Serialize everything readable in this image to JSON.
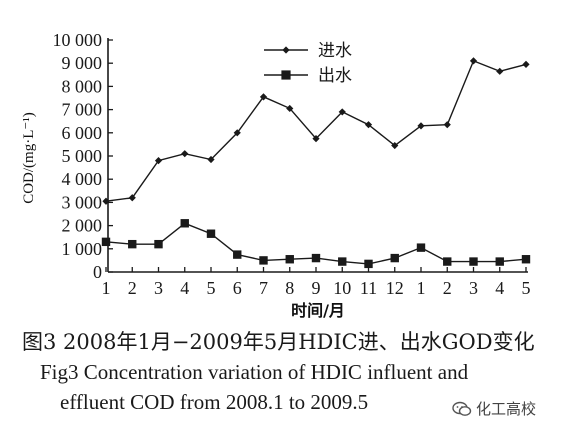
{
  "chart_data": {
    "type": "line",
    "categories": [
      "1",
      "2",
      "3",
      "4",
      "5",
      "6",
      "7",
      "8",
      "9",
      "10",
      "11",
      "12",
      "1",
      "2",
      "3",
      "4",
      "5"
    ],
    "series": [
      {
        "name": "进水",
        "marker": "diamond",
        "values": [
          3050,
          3200,
          4800,
          5100,
          4850,
          6000,
          7550,
          7050,
          5750,
          6900,
          6350,
          5450,
          6300,
          6350,
          9100,
          8650,
          8950
        ]
      },
      {
        "name": "出水",
        "marker": "square",
        "values": [
          1300,
          1200,
          1200,
          2100,
          1650,
          750,
          500,
          550,
          600,
          450,
          350,
          600,
          1050,
          450,
          450,
          450,
          550
        ]
      }
    ],
    "xlabel": "时间/月",
    "ylabel": "COD/(mg·L⁻¹)",
    "ylim": [
      0,
      10000
    ],
    "yticks": [
      0,
      1000,
      2000,
      3000,
      4000,
      5000,
      6000,
      7000,
      8000,
      9000,
      10000
    ],
    "ytick_labels": [
      "0",
      "1 000",
      "2 000",
      "3 000",
      "4 000",
      "5 000",
      "6 000",
      "7 000",
      "8 000",
      "9 000",
      "10 000"
    ],
    "grid": false,
    "legend_position": "top-center",
    "line_color": "#1a1a1a"
  },
  "caption": {
    "cn": "图3 2008年1月−2009年5月HDIC进、出水GOD变化",
    "en_line1": "Fig3 Concentration variation of HDIC influent and",
    "en_line2": "effluent COD from 2008.1 to 2009.5"
  },
  "watermark": {
    "text": "化工高校",
    "icon": "wechat-icon"
  }
}
